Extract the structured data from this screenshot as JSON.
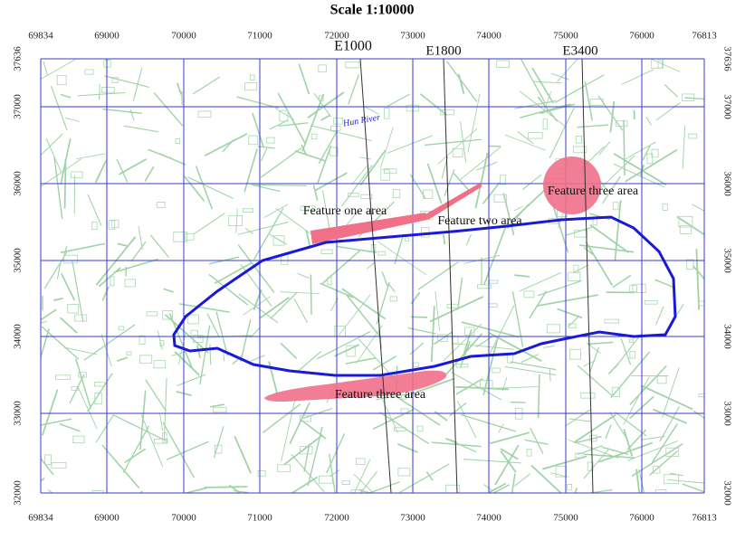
{
  "title": "Scale 1:10000",
  "x_labels": [
    69834,
    69000,
    70000,
    71000,
    72000,
    73000,
    74000,
    75000,
    76000,
    76813
  ],
  "y_labels": [
    37636,
    37000,
    36000,
    35000,
    34000,
    33000,
    32000
  ],
  "sections": [
    "E1000",
    "E1800",
    "E3400"
  ],
  "river": "Hun River",
  "features": [
    "Feature one area",
    "Feature two area",
    "Feature three area",
    "Feature three area"
  ]
}
